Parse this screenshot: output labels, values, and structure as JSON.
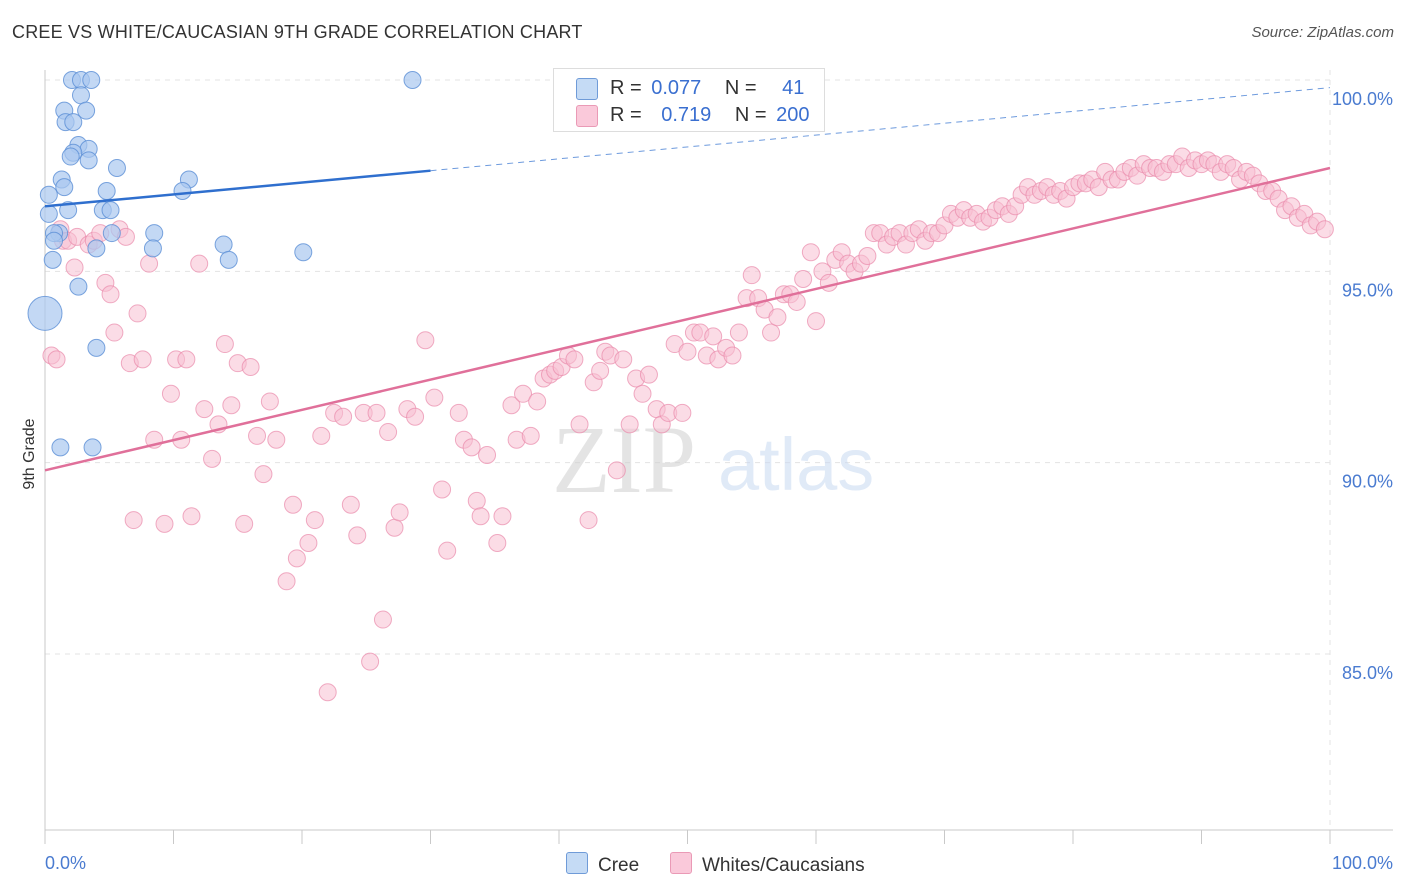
{
  "header": {
    "title": "CREE VS WHITE/CAUCASIAN 9TH GRADE CORRELATION CHART",
    "source": "Source: ZipAtlas.com"
  },
  "watermark": {
    "zip": "ZIP",
    "atlas": "atlas"
  },
  "legend": {
    "cree": {
      "r_label": "R =",
      "r_value": "0.077",
      "n_label": "N =",
      "n_value": "41"
    },
    "white": {
      "r_label": "R =",
      "r_value": "0.719",
      "n_label": "N =",
      "n_value": "200"
    }
  },
  "bottom_legend": {
    "cree": "Cree",
    "white": "Whites/Caucasians"
  },
  "colors": {
    "cree_fill": "#aac8f0",
    "cree_stroke": "#5b8fd6",
    "cree_line": "#2f6fce",
    "white_fill": "#f7c0d2",
    "white_stroke": "#e98aab",
    "white_line": "#e0709a",
    "grid": "#e3e3e3",
    "tick_text": "#4a7bd0"
  },
  "chart_data": {
    "type": "scatter",
    "title": "CREE VS WHITE/CAUCASIAN 9TH GRADE CORRELATION CHART",
    "xlabel": "",
    "ylabel": "9th Grade",
    "xlim": [
      0,
      100
    ],
    "ylim": [
      80.5,
      100.6
    ],
    "x_tick_labels": [
      "0.0%",
      "100.0%"
    ],
    "y_ticks": [
      {
        "value": 100,
        "label": "100.0%"
      },
      {
        "value": 95,
        "label": "95.0%"
      },
      {
        "value": 90,
        "label": "90.0%"
      },
      {
        "value": 85,
        "label": "85.0%"
      }
    ],
    "series": [
      {
        "name": "Cree",
        "r": 0.077,
        "n": 41,
        "trend": {
          "x0": 0,
          "y0": 96.7,
          "x1": 100,
          "y1": 99.8,
          "solid_until_x": 30
        },
        "points": [
          [
            2.1,
            100.0
          ],
          [
            2.8,
            100.0
          ],
          [
            3.6,
            100.0
          ],
          [
            28.6,
            100.0
          ],
          [
            2.8,
            99.6
          ],
          [
            1.5,
            99.2
          ],
          [
            3.2,
            99.2
          ],
          [
            1.6,
            98.9
          ],
          [
            2.2,
            98.9
          ],
          [
            2.6,
            98.3
          ],
          [
            3.4,
            98.2
          ],
          [
            2.2,
            98.1
          ],
          [
            2.0,
            98.0
          ],
          [
            3.4,
            97.9
          ],
          [
            5.6,
            97.7
          ],
          [
            1.3,
            97.4
          ],
          [
            11.2,
            97.4
          ],
          [
            1.5,
            97.2
          ],
          [
            4.8,
            97.1
          ],
          [
            10.7,
            97.1
          ],
          [
            0.3,
            97.0
          ],
          [
            1.8,
            96.6
          ],
          [
            4.5,
            96.6
          ],
          [
            5.1,
            96.6
          ],
          [
            0.3,
            96.5
          ],
          [
            1.1,
            96.0
          ],
          [
            5.2,
            96.0
          ],
          [
            0.7,
            96.0
          ],
          [
            8.5,
            96.0
          ],
          [
            0.7,
            95.8
          ],
          [
            13.9,
            95.7
          ],
          [
            4.0,
            95.6
          ],
          [
            8.4,
            95.6
          ],
          [
            20.1,
            95.5
          ],
          [
            0.6,
            95.3
          ],
          [
            14.3,
            95.3
          ],
          [
            2.6,
            94.6
          ],
          [
            0.0,
            93.9
          ],
          [
            4.0,
            93.0
          ],
          [
            1.2,
            90.4
          ],
          [
            3.7,
            90.4
          ]
        ]
      },
      {
        "name": "Whites/Caucasians",
        "r": 0.719,
        "n": 200,
        "trend": {
          "x0": 0,
          "y0": 89.8,
          "x1": 100,
          "y1": 97.7
        },
        "points": [
          [
            0.5,
            92.8
          ],
          [
            0.9,
            92.7
          ],
          [
            1.2,
            96.1
          ],
          [
            1.4,
            95.8
          ],
          [
            1.8,
            95.8
          ],
          [
            2.3,
            95.1
          ],
          [
            2.5,
            95.9
          ],
          [
            3.4,
            95.7
          ],
          [
            3.8,
            95.8
          ],
          [
            4.3,
            96.0
          ],
          [
            4.7,
            94.7
          ],
          [
            5.1,
            94.4
          ],
          [
            5.4,
            93.4
          ],
          [
            5.8,
            96.1
          ],
          [
            6.3,
            95.9
          ],
          [
            6.6,
            92.6
          ],
          [
            6.9,
            88.5
          ],
          [
            7.2,
            93.9
          ],
          [
            7.6,
            92.7
          ],
          [
            8.1,
            95.2
          ],
          [
            8.5,
            90.6
          ],
          [
            9.3,
            88.4
          ],
          [
            9.8,
            91.8
          ],
          [
            10.2,
            92.7
          ],
          [
            10.6,
            90.6
          ],
          [
            11.0,
            92.7
          ],
          [
            11.4,
            88.6
          ],
          [
            12.0,
            95.2
          ],
          [
            12.4,
            91.4
          ],
          [
            13.0,
            90.1
          ],
          [
            13.5,
            91.0
          ],
          [
            14.0,
            93.1
          ],
          [
            14.5,
            91.5
          ],
          [
            15.0,
            92.6
          ],
          [
            15.5,
            88.4
          ],
          [
            16.0,
            92.5
          ],
          [
            16.5,
            90.7
          ],
          [
            17.0,
            89.7
          ],
          [
            17.5,
            91.6
          ],
          [
            18.0,
            90.6
          ],
          [
            18.8,
            86.9
          ],
          [
            19.3,
            88.9
          ],
          [
            19.6,
            87.5
          ],
          [
            20.5,
            87.9
          ],
          [
            21.0,
            88.5
          ],
          [
            21.5,
            90.7
          ],
          [
            22.0,
            84.0
          ],
          [
            22.5,
            91.3
          ],
          [
            23.2,
            91.2
          ],
          [
            23.8,
            88.9
          ],
          [
            24.3,
            88.1
          ],
          [
            24.8,
            91.3
          ],
          [
            25.3,
            84.8
          ],
          [
            25.8,
            91.3
          ],
          [
            26.3,
            85.9
          ],
          [
            26.7,
            90.8
          ],
          [
            27.2,
            88.3
          ],
          [
            27.6,
            88.7
          ],
          [
            28.2,
            91.4
          ],
          [
            28.8,
            91.2
          ],
          [
            29.6,
            93.2
          ],
          [
            30.3,
            91.7
          ],
          [
            30.9,
            89.3
          ],
          [
            31.3,
            87.7
          ],
          [
            32.2,
            91.3
          ],
          [
            32.6,
            90.6
          ],
          [
            33.2,
            90.4
          ],
          [
            33.6,
            89.0
          ],
          [
            33.9,
            88.6
          ],
          [
            34.4,
            90.2
          ],
          [
            35.2,
            87.9
          ],
          [
            35.6,
            88.6
          ],
          [
            36.3,
            91.5
          ],
          [
            36.7,
            90.6
          ],
          [
            37.2,
            91.8
          ],
          [
            37.8,
            90.7
          ],
          [
            38.3,
            91.6
          ],
          [
            38.8,
            92.2
          ],
          [
            39.3,
            92.3
          ],
          [
            39.7,
            92.4
          ],
          [
            40.2,
            92.5
          ],
          [
            40.7,
            92.8
          ],
          [
            41.2,
            92.7
          ],
          [
            41.6,
            91.0
          ],
          [
            42.3,
            88.5
          ],
          [
            42.7,
            92.1
          ],
          [
            43.2,
            92.4
          ],
          [
            43.6,
            92.9
          ],
          [
            44.0,
            92.8
          ],
          [
            44.5,
            89.8
          ],
          [
            45.0,
            92.7
          ],
          [
            45.5,
            91.0
          ],
          [
            46.0,
            92.2
          ],
          [
            46.5,
            91.8
          ],
          [
            47.0,
            92.3
          ],
          [
            47.6,
            91.4
          ],
          [
            48.0,
            91.0
          ],
          [
            48.5,
            91.3
          ],
          [
            49.0,
            93.1
          ],
          [
            49.6,
            91.3
          ],
          [
            50.0,
            92.9
          ],
          [
            50.5,
            93.4
          ],
          [
            51.0,
            93.4
          ],
          [
            51.5,
            92.8
          ],
          [
            52.0,
            93.3
          ],
          [
            52.4,
            92.7
          ],
          [
            53.0,
            93.0
          ],
          [
            53.5,
            92.8
          ],
          [
            54.0,
            93.4
          ],
          [
            54.6,
            94.3
          ],
          [
            55.0,
            94.9
          ],
          [
            55.5,
            94.3
          ],
          [
            56.0,
            94.0
          ],
          [
            56.5,
            93.4
          ],
          [
            57.0,
            93.8
          ],
          [
            57.5,
            94.4
          ],
          [
            58.0,
            94.4
          ],
          [
            58.5,
            94.2
          ],
          [
            59.0,
            94.8
          ],
          [
            59.6,
            95.5
          ],
          [
            60.0,
            93.7
          ],
          [
            60.5,
            95.0
          ],
          [
            61.0,
            94.7
          ],
          [
            61.5,
            95.3
          ],
          [
            62.0,
            95.5
          ],
          [
            62.5,
            95.2
          ],
          [
            63.0,
            95.0
          ],
          [
            63.5,
            95.2
          ],
          [
            64.0,
            95.4
          ],
          [
            64.5,
            96.0
          ],
          [
            65.0,
            96.0
          ],
          [
            65.5,
            95.7
          ],
          [
            66.0,
            95.9
          ],
          [
            66.5,
            96.0
          ],
          [
            67.0,
            95.7
          ],
          [
            67.5,
            96.0
          ],
          [
            68.0,
            96.1
          ],
          [
            68.5,
            95.8
          ],
          [
            69.0,
            96.0
          ],
          [
            69.5,
            96.0
          ],
          [
            70.0,
            96.2
          ],
          [
            70.5,
            96.5
          ],
          [
            71.0,
            96.4
          ],
          [
            71.5,
            96.6
          ],
          [
            72.0,
            96.4
          ],
          [
            72.5,
            96.5
          ],
          [
            73.0,
            96.3
          ],
          [
            73.5,
            96.4
          ],
          [
            74.0,
            96.6
          ],
          [
            74.5,
            96.7
          ],
          [
            75.0,
            96.5
          ],
          [
            75.5,
            96.7
          ],
          [
            76.0,
            97.0
          ],
          [
            76.5,
            97.2
          ],
          [
            77.0,
            97.0
          ],
          [
            77.5,
            97.1
          ],
          [
            78.0,
            97.2
          ],
          [
            78.5,
            97.0
          ],
          [
            79.0,
            97.1
          ],
          [
            79.5,
            96.9
          ],
          [
            80.0,
            97.2
          ],
          [
            80.5,
            97.3
          ],
          [
            81.0,
            97.3
          ],
          [
            81.5,
            97.4
          ],
          [
            82.0,
            97.2
          ],
          [
            82.5,
            97.6
          ],
          [
            83.0,
            97.4
          ],
          [
            83.5,
            97.4
          ],
          [
            84.0,
            97.6
          ],
          [
            84.5,
            97.7
          ],
          [
            85.0,
            97.5
          ],
          [
            85.5,
            97.8
          ],
          [
            86.0,
            97.7
          ],
          [
            86.5,
            97.7
          ],
          [
            87.0,
            97.6
          ],
          [
            87.5,
            97.8
          ],
          [
            88.0,
            97.8
          ],
          [
            88.5,
            98.0
          ],
          [
            89.0,
            97.7
          ],
          [
            89.5,
            97.9
          ],
          [
            90.0,
            97.8
          ],
          [
            90.5,
            97.9
          ],
          [
            91.0,
            97.8
          ],
          [
            91.5,
            97.6
          ],
          [
            92.0,
            97.8
          ],
          [
            92.5,
            97.7
          ],
          [
            93.0,
            97.4
          ],
          [
            93.5,
            97.6
          ],
          [
            94.0,
            97.5
          ],
          [
            94.5,
            97.3
          ],
          [
            95.0,
            97.1
          ],
          [
            95.5,
            97.1
          ],
          [
            96.0,
            96.9
          ],
          [
            96.5,
            96.6
          ],
          [
            97.0,
            96.7
          ],
          [
            97.5,
            96.4
          ],
          [
            98.0,
            96.5
          ],
          [
            98.5,
            96.2
          ],
          [
            99.0,
            96.3
          ],
          [
            99.6,
            96.1
          ]
        ]
      }
    ]
  }
}
